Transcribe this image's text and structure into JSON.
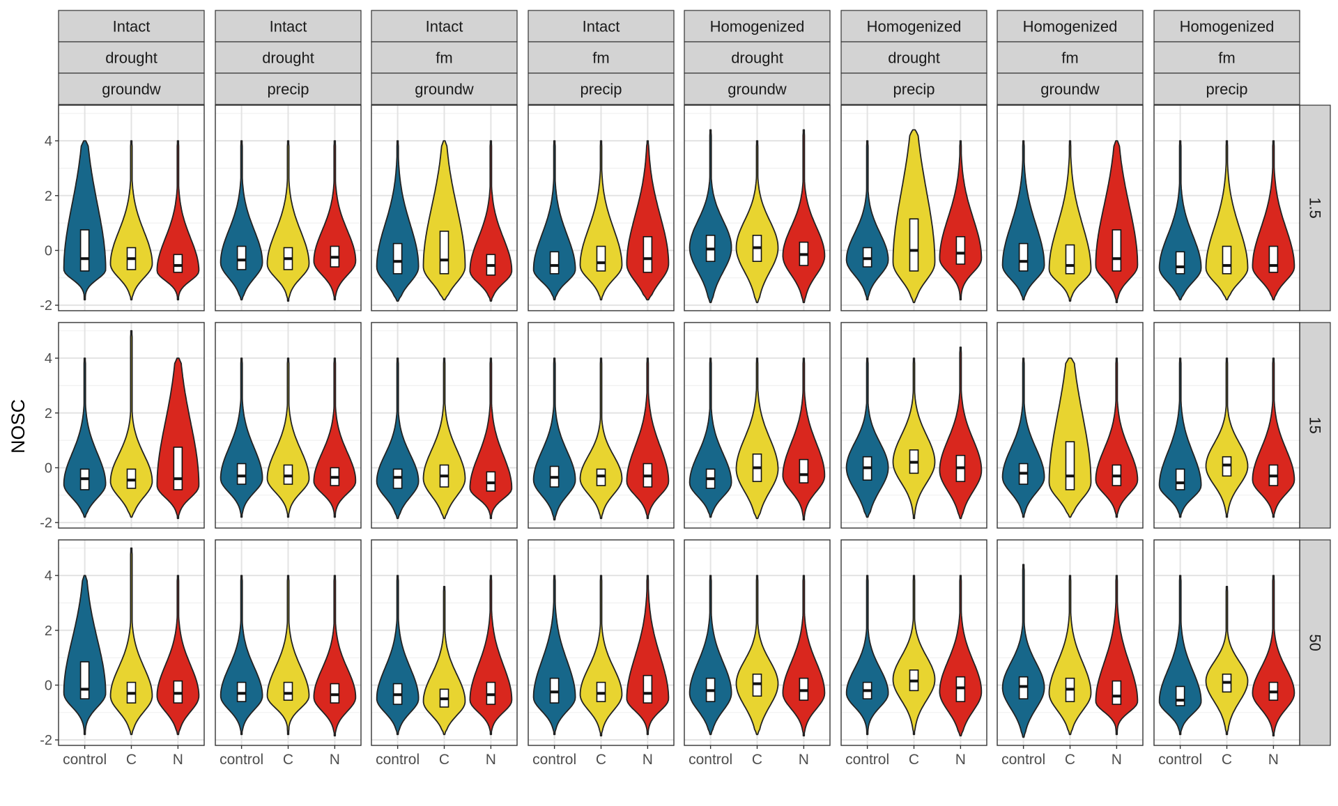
{
  "chart_data": {
    "type": "violin",
    "title": "",
    "ylabel": "NOSC",
    "xlabel": "",
    "ylim": [
      -2.2,
      5.3
    ],
    "y_ticks": [
      -2,
      0,
      2,
      4
    ],
    "categories": [
      "control",
      "C",
      "N"
    ],
    "colors": {
      "control": "#17678A",
      "C": "#E8D430",
      "N": "#D9271E"
    },
    "grid": true,
    "legend": "none",
    "column_strips": [
      [
        "Intact",
        "drought",
        "groundw"
      ],
      [
        "Intact",
        "drought",
        "precip"
      ],
      [
        "Intact",
        "fm",
        "groundw"
      ],
      [
        "Intact",
        "fm",
        "precip"
      ],
      [
        "Homogenized",
        "drought",
        "groundw"
      ],
      [
        "Homogenized",
        "drought",
        "precip"
      ],
      [
        "Homogenized",
        "fm",
        "groundw"
      ],
      [
        "Homogenized",
        "fm",
        "precip"
      ]
    ],
    "row_strips": [
      "1.5",
      "15",
      "50"
    ],
    "panels": [
      [
        [
          {
            "min": -1.8,
            "max": 4.0,
            "q1": -0.75,
            "med": -0.3,
            "q3": 0.75,
            "mode": -0.7
          },
          {
            "min": -1.8,
            "max": 4.0,
            "q1": -0.7,
            "med": -0.3,
            "q3": 0.1,
            "mode": -0.5
          },
          {
            "min": -1.8,
            "max": 4.0,
            "q1": -0.8,
            "med": -0.55,
            "q3": -0.15,
            "mode": -0.75
          }
        ],
        [
          {
            "min": -1.8,
            "max": 4.0,
            "q1": -0.7,
            "med": -0.35,
            "q3": 0.15,
            "mode": -0.45
          },
          {
            "min": -1.85,
            "max": 4.0,
            "q1": -0.7,
            "med": -0.3,
            "q3": 0.1,
            "mode": -0.5
          },
          {
            "min": -1.8,
            "max": 4.0,
            "q1": -0.6,
            "med": -0.25,
            "q3": 0.15,
            "mode": -0.4
          }
        ],
        [
          {
            "min": -1.85,
            "max": 4.0,
            "q1": -0.85,
            "med": -0.4,
            "q3": 0.25,
            "mode": -0.6
          },
          {
            "min": -1.8,
            "max": 4.0,
            "q1": -0.85,
            "med": -0.35,
            "q3": 0.7,
            "mode": -0.6
          },
          {
            "min": -1.85,
            "max": 4.0,
            "q1": -0.9,
            "med": -0.55,
            "q3": -0.15,
            "mode": -0.75
          }
        ],
        [
          {
            "min": -1.8,
            "max": 4.0,
            "q1": -0.85,
            "med": -0.55,
            "q3": -0.05,
            "mode": -0.7
          },
          {
            "min": -1.8,
            "max": 4.0,
            "q1": -0.75,
            "med": -0.45,
            "q3": 0.15,
            "mode": -0.55
          },
          {
            "min": -1.8,
            "max": 4.0,
            "q1": -0.8,
            "med": -0.3,
            "q3": 0.5,
            "mode": -0.5
          }
        ],
        [
          {
            "min": -1.9,
            "max": 4.4,
            "q1": -0.4,
            "med": 0.05,
            "q3": 0.55,
            "mode": 0.1
          },
          {
            "min": -1.9,
            "max": 4.0,
            "q1": -0.4,
            "med": 0.1,
            "q3": 0.55,
            "mode": 0.1
          },
          {
            "min": -1.9,
            "max": 4.4,
            "q1": -0.55,
            "med": -0.15,
            "q3": 0.3,
            "mode": -0.2
          }
        ],
        [
          {
            "min": -1.8,
            "max": 4.0,
            "q1": -0.6,
            "med": -0.3,
            "q3": 0.1,
            "mode": -0.35
          },
          {
            "min": -1.9,
            "max": 4.4,
            "q1": -0.75,
            "med": 0.0,
            "q3": 1.15,
            "mode": -0.45
          },
          {
            "min": -1.8,
            "max": 4.0,
            "q1": -0.5,
            "med": -0.1,
            "q3": 0.5,
            "mode": -0.3
          }
        ],
        [
          {
            "min": -1.8,
            "max": 4.0,
            "q1": -0.75,
            "med": -0.4,
            "q3": 0.25,
            "mode": -0.55
          },
          {
            "min": -1.85,
            "max": 4.0,
            "q1": -0.85,
            "med": -0.55,
            "q3": 0.2,
            "mode": -0.7
          },
          {
            "min": -1.9,
            "max": 4.0,
            "q1": -0.75,
            "med": -0.3,
            "q3": 0.75,
            "mode": -0.55
          }
        ],
        [
          {
            "min": -1.8,
            "max": 4.0,
            "q1": -0.85,
            "med": -0.6,
            "q3": -0.05,
            "mode": -0.65
          },
          {
            "min": -1.8,
            "max": 4.0,
            "q1": -0.85,
            "med": -0.55,
            "q3": 0.15,
            "mode": -0.65
          },
          {
            "min": -1.8,
            "max": 4.0,
            "q1": -0.8,
            "med": -0.55,
            "q3": 0.15,
            "mode": -0.6
          }
        ]
      ],
      [
        [
          {
            "min": -1.8,
            "max": 4.0,
            "q1": -0.8,
            "med": -0.4,
            "q3": -0.05,
            "mode": -0.6
          },
          {
            "min": -1.8,
            "max": 5.0,
            "q1": -0.75,
            "med": -0.45,
            "q3": -0.05,
            "mode": -0.5
          },
          {
            "min": -1.85,
            "max": 4.0,
            "q1": -0.8,
            "med": -0.4,
            "q3": 0.75,
            "mode": -0.65
          }
        ],
        [
          {
            "min": -1.8,
            "max": 4.0,
            "q1": -0.6,
            "med": -0.3,
            "q3": 0.15,
            "mode": -0.4
          },
          {
            "min": -1.8,
            "max": 4.0,
            "q1": -0.6,
            "med": -0.3,
            "q3": 0.1,
            "mode": -0.4
          },
          {
            "min": -1.8,
            "max": 4.0,
            "q1": -0.65,
            "med": -0.35,
            "q3": 0.0,
            "mode": -0.5
          }
        ],
        [
          {
            "min": -1.85,
            "max": 4.0,
            "q1": -0.75,
            "med": -0.35,
            "q3": -0.05,
            "mode": -0.5
          },
          {
            "min": -1.85,
            "max": 4.0,
            "q1": -0.7,
            "med": -0.3,
            "q3": 0.1,
            "mode": -0.4
          },
          {
            "min": -1.85,
            "max": 4.0,
            "q1": -0.85,
            "med": -0.55,
            "q3": -0.15,
            "mode": -0.75
          }
        ],
        [
          {
            "min": -1.9,
            "max": 4.0,
            "q1": -0.7,
            "med": -0.35,
            "q3": 0.05,
            "mode": -0.45
          },
          {
            "min": -1.85,
            "max": 4.0,
            "q1": -0.65,
            "med": -0.3,
            "q3": -0.05,
            "mode": -0.4
          },
          {
            "min": -1.85,
            "max": 4.0,
            "q1": -0.7,
            "med": -0.3,
            "q3": 0.15,
            "mode": -0.5
          }
        ],
        [
          {
            "min": -1.8,
            "max": 4.0,
            "q1": -0.75,
            "med": -0.4,
            "q3": -0.05,
            "mode": -0.55
          },
          {
            "min": -1.85,
            "max": 4.0,
            "q1": -0.5,
            "med": 0.0,
            "q3": 0.5,
            "mode": -0.05
          },
          {
            "min": -1.9,
            "max": 4.0,
            "q1": -0.55,
            "med": -0.25,
            "q3": 0.3,
            "mode": -0.3
          }
        ],
        [
          {
            "min": -1.8,
            "max": 4.0,
            "q1": -0.45,
            "med": 0.0,
            "q3": 0.4,
            "mode": 0.0
          },
          {
            "min": -1.85,
            "max": 4.0,
            "q1": -0.2,
            "med": 0.2,
            "q3": 0.65,
            "mode": 0.2
          },
          {
            "min": -1.85,
            "max": 4.4,
            "q1": -0.5,
            "med": 0.0,
            "q3": 0.45,
            "mode": -0.1
          }
        ],
        [
          {
            "min": -1.8,
            "max": 4.0,
            "q1": -0.6,
            "med": -0.2,
            "q3": 0.15,
            "mode": -0.35
          },
          {
            "min": -1.8,
            "max": 4.0,
            "q1": -0.8,
            "med": -0.3,
            "q3": 0.95,
            "mode": -0.55
          },
          {
            "min": -1.8,
            "max": 4.0,
            "q1": -0.65,
            "med": -0.3,
            "q3": 0.1,
            "mode": -0.45
          }
        ],
        [
          {
            "min": -1.8,
            "max": 4.0,
            "q1": -0.8,
            "med": -0.55,
            "q3": -0.05,
            "mode": -0.65
          },
          {
            "min": -1.8,
            "max": 4.0,
            "q1": -0.3,
            "med": 0.1,
            "q3": 0.4,
            "mode": 0.05
          },
          {
            "min": -1.8,
            "max": 4.0,
            "q1": -0.65,
            "med": -0.3,
            "q3": 0.1,
            "mode": -0.45
          }
        ]
      ],
      [
        [
          {
            "min": -1.8,
            "max": 4.0,
            "q1": -0.5,
            "med": -0.15,
            "q3": 0.85,
            "mode": -0.3
          },
          {
            "min": -1.8,
            "max": 5.0,
            "q1": -0.65,
            "med": -0.3,
            "q3": 0.1,
            "mode": -0.4
          },
          {
            "min": -1.8,
            "max": 4.0,
            "q1": -0.65,
            "med": -0.3,
            "q3": 0.15,
            "mode": -0.4
          }
        ],
        [
          {
            "min": -1.8,
            "max": 4.0,
            "q1": -0.6,
            "med": -0.3,
            "q3": 0.1,
            "mode": -0.4
          },
          {
            "min": -1.8,
            "max": 4.0,
            "q1": -0.55,
            "med": -0.3,
            "q3": 0.1,
            "mode": -0.4
          },
          {
            "min": -1.85,
            "max": 4.0,
            "q1": -0.65,
            "med": -0.35,
            "q3": 0.05,
            "mode": -0.45
          }
        ],
        [
          {
            "min": -1.8,
            "max": 4.0,
            "q1": -0.7,
            "med": -0.35,
            "q3": 0.05,
            "mode": -0.5
          },
          {
            "min": -1.8,
            "max": 3.6,
            "q1": -0.8,
            "med": -0.5,
            "q3": -0.15,
            "mode": -0.6
          },
          {
            "min": -1.8,
            "max": 4.0,
            "q1": -0.7,
            "med": -0.35,
            "q3": 0.1,
            "mode": -0.55
          }
        ],
        [
          {
            "min": -1.8,
            "max": 4.0,
            "q1": -0.65,
            "med": -0.25,
            "q3": 0.25,
            "mode": -0.45
          },
          {
            "min": -1.85,
            "max": 4.0,
            "q1": -0.6,
            "med": -0.3,
            "q3": 0.1,
            "mode": -0.35
          },
          {
            "min": -1.8,
            "max": 4.0,
            "q1": -0.65,
            "med": -0.3,
            "q3": 0.35,
            "mode": -0.5
          }
        ],
        [
          {
            "min": -1.8,
            "max": 4.0,
            "q1": -0.6,
            "med": -0.2,
            "q3": 0.25,
            "mode": -0.3
          },
          {
            "min": -1.8,
            "max": 4.0,
            "q1": -0.4,
            "med": 0.05,
            "q3": 0.4,
            "mode": 0.05
          },
          {
            "min": -1.85,
            "max": 4.0,
            "q1": -0.55,
            "med": -0.2,
            "q3": 0.25,
            "mode": -0.3
          }
        ],
        [
          {
            "min": -1.8,
            "max": 4.0,
            "q1": -0.5,
            "med": -0.2,
            "q3": 0.1,
            "mode": -0.3
          },
          {
            "min": -1.8,
            "max": 4.0,
            "q1": -0.2,
            "med": 0.15,
            "q3": 0.55,
            "mode": 0.2
          },
          {
            "min": -1.85,
            "max": 4.0,
            "q1": -0.6,
            "med": -0.1,
            "q3": 0.3,
            "mode": -0.25
          }
        ],
        [
          {
            "min": -1.9,
            "max": 4.4,
            "q1": -0.5,
            "med": -0.05,
            "q3": 0.3,
            "mode": -0.1
          },
          {
            "min": -1.8,
            "max": 4.0,
            "q1": -0.6,
            "med": -0.15,
            "q3": 0.25,
            "mode": -0.3
          },
          {
            "min": -1.8,
            "max": 4.0,
            "q1": -0.7,
            "med": -0.4,
            "q3": 0.15,
            "mode": -0.6
          }
        ],
        [
          {
            "min": -1.8,
            "max": 4.0,
            "q1": -0.75,
            "med": -0.55,
            "q3": -0.05,
            "mode": -0.6
          },
          {
            "min": -1.8,
            "max": 3.6,
            "q1": -0.25,
            "med": 0.1,
            "q3": 0.4,
            "mode": 0.15
          },
          {
            "min": -1.85,
            "max": 4.0,
            "q1": -0.55,
            "med": -0.25,
            "q3": 0.1,
            "mode": -0.3
          }
        ]
      ]
    ]
  }
}
